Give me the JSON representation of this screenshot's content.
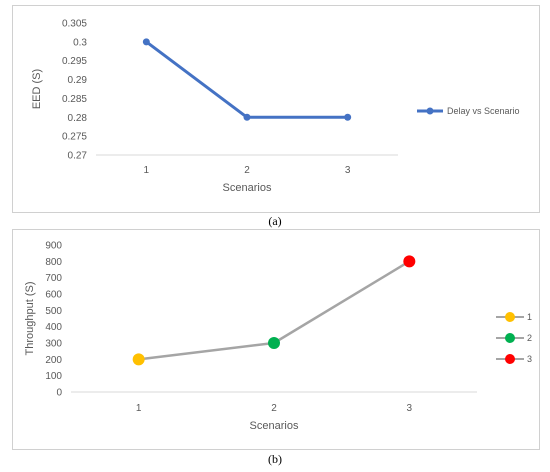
{
  "captions": {
    "a": "(a)",
    "b": "(b)"
  },
  "chart_data": [
    {
      "type": "line",
      "panel": "a",
      "categories": [
        "1",
        "2",
        "3"
      ],
      "series": [
        {
          "name": "Delay vs Scenario",
          "values": [
            0.3,
            0.28,
            0.28
          ],
          "color": "#4472C4"
        }
      ],
      "xlabel": "Scenarios",
      "ylabel": "EED (S)",
      "ylim": [
        0.27,
        0.305
      ],
      "yticks": [
        "0.305",
        "0.3",
        "0.295",
        "0.29",
        "0.285",
        "0.28",
        "0.275",
        "0.27"
      ],
      "grid": false,
      "legend": "right"
    },
    {
      "type": "line",
      "panel": "b",
      "categories": [
        "1",
        "2",
        "3"
      ],
      "series": [
        {
          "values": [
            200,
            300,
            800
          ],
          "line_color": "#A5A5A5",
          "point_colors": [
            "#FFC000",
            "#00B050",
            "#FF0000"
          ]
        }
      ],
      "legend_entries": [
        {
          "label": "1",
          "color": "#FFC000"
        },
        {
          "label": "2",
          "color": "#00B050"
        },
        {
          "label": "3",
          "color": "#FF0000"
        }
      ],
      "xlabel": "Scenarios",
      "ylabel": "Throughput (S)",
      "ylim": [
        0,
        900
      ],
      "yticks": [
        "900",
        "800",
        "700",
        "600",
        "500",
        "400",
        "300",
        "200",
        "100",
        "0"
      ],
      "grid": false,
      "legend": "right"
    }
  ]
}
